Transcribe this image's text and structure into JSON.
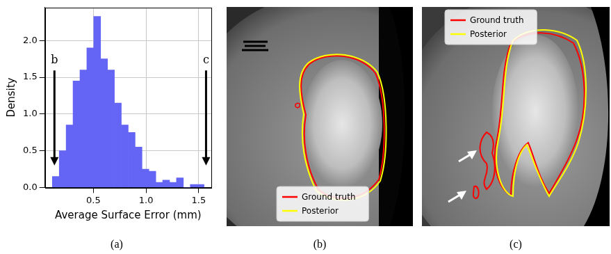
{
  "chart_data": {
    "type": "histogram",
    "panel_label": "(a)",
    "x_label": "Average Surface Error (mm)",
    "y_label": "Density",
    "bins": [
      0.11,
      0.176,
      0.241,
      0.307,
      0.372,
      0.438,
      0.503,
      0.569,
      0.634,
      0.7,
      0.765,
      0.831,
      0.896,
      0.962,
      1.027,
      1.093,
      1.158,
      1.224,
      1.289,
      1.355,
      1.42,
      1.486,
      1.551
    ],
    "values": [
      0.15,
      0.5,
      0.85,
      1.45,
      1.6,
      1.9,
      2.33,
      1.75,
      1.6,
      1.15,
      0.85,
      0.75,
      0.55,
      0.25,
      0.22,
      0.07,
      0.1,
      0.07,
      0.13,
      0,
      0.04,
      0.04
    ],
    "color": "#6464f5",
    "xlim": [
      0.04,
      1.62
    ],
    "xticks": [
      0.5,
      {
        "value": 1,
        "label": "1.0"
      },
      1.5
    ],
    "ylim": [
      0,
      2.45
    ],
    "yticks": [
      {
        "value": 0,
        "label": "0.0"
      },
      0.5,
      {
        "value": 1,
        "label": "1.0"
      },
      1.5,
      {
        "value": 2,
        "label": "2.0"
      }
    ],
    "grid": true,
    "annotations": [
      {
        "text": "b",
        "x": 0.13,
        "y": 1.65,
        "arrow_to": 0.3
      },
      {
        "text": "c",
        "x": 1.57,
        "y": 1.65,
        "arrow_to": 0.3
      }
    ]
  },
  "panels": [
    {
      "label": "(b)",
      "legend": "lower left",
      "series": [
        {
          "name": "Ground truth",
          "color": "#ff0000"
        },
        {
          "name": "Posterior",
          "color": "#ffff00"
        }
      ]
    },
    {
      "label": "(c)",
      "legend": "upper left",
      "series": [
        {
          "name": "Ground truth",
          "color": "#ff0000"
        },
        {
          "name": "Posterior",
          "color": "#ffff00"
        }
      ]
    }
  ]
}
